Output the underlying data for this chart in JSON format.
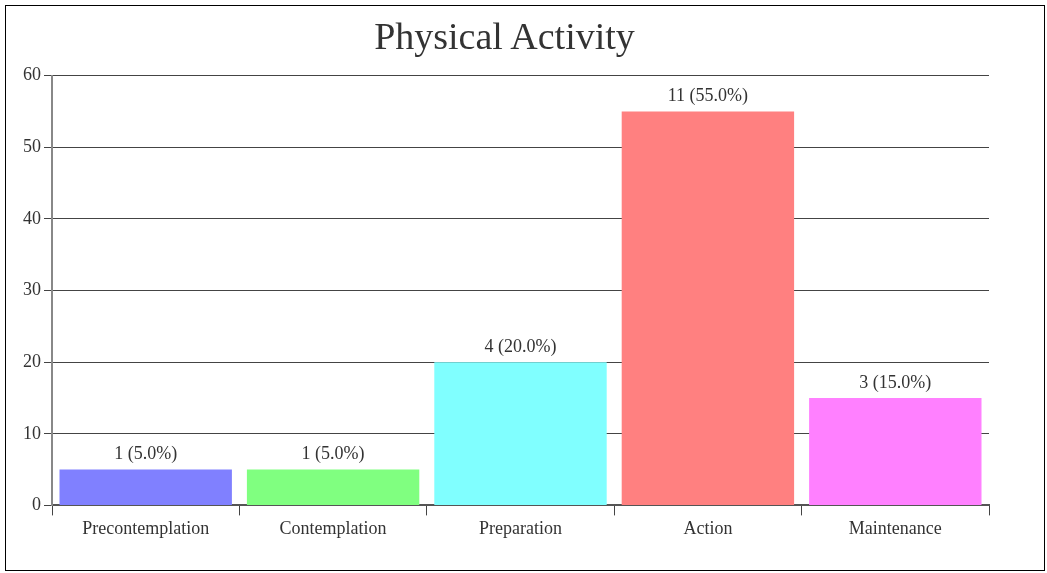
{
  "chart_data": {
    "type": "bar",
    "title": "Physical Activity",
    "categories": [
      "Precontemplation",
      "Contemplation",
      "Preparation",
      "Action",
      "Maintenance"
    ],
    "values": [
      5,
      5,
      20,
      55,
      15
    ],
    "colors": [
      "#8080ff",
      "#80ff80",
      "#80ffff",
      "#ff8080",
      "#ff80ff"
    ],
    "value_labels": [
      "1 (5.0%)",
      "1 (5.0%)",
      "4 (20.0%)",
      "11 (55.0%)",
      "3 (15.0%)"
    ],
    "ylim": [
      0,
      60
    ],
    "yticks": [
      0,
      10,
      20,
      30,
      40,
      50,
      60
    ],
    "grid": "y",
    "legend": false
  }
}
